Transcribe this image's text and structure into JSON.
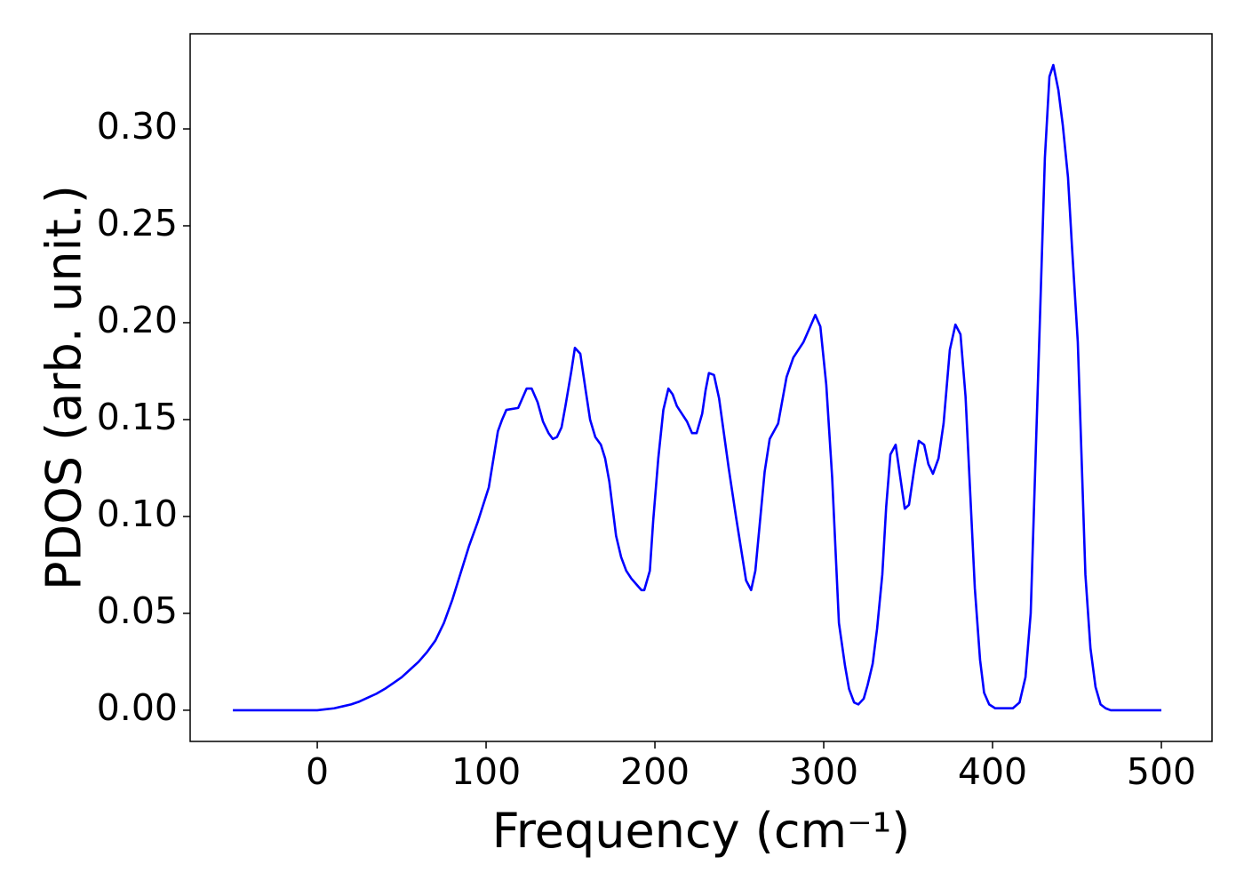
{
  "chart_data": {
    "type": "line",
    "x_label": "Frequency (cm⁻¹)",
    "y_label": "PDOS (arb. unit.)",
    "xlim": [
      -75.3,
      530
    ],
    "ylim": [
      -0.0161,
      0.3491
    ],
    "xticks": [
      0,
      100,
      200,
      300,
      400,
      500
    ],
    "yticks": [
      {
        "value": 0,
        "label": "0.00"
      },
      0.05,
      {
        "value": 0.1,
        "label": "0.10"
      },
      0.15,
      {
        "value": 0.2,
        "label": "0.20"
      },
      0.25,
      {
        "value": 0.3,
        "label": "0.30"
      }
    ],
    "grid": false,
    "series": [
      {
        "color": "#0000ff",
        "x": [
          -50,
          -25,
          0,
          5,
          10,
          15,
          20,
          25,
          30,
          35,
          40,
          45,
          50,
          55,
          60,
          65,
          70,
          75,
          80,
          85,
          90,
          95,
          101.6,
          107,
          109.5,
          112,
          119,
          124,
          127,
          130.5,
          133.7,
          137,
          139.5,
          142,
          144.7,
          147,
          150.5,
          152.6,
          155.8,
          159,
          161.6,
          164.7,
          168,
          170.5,
          173,
          177,
          180,
          183,
          186,
          189,
          192,
          193.7,
          197,
          199,
          202,
          205,
          208,
          210.5,
          213,
          216,
          219,
          222,
          224.7,
          228,
          230,
          232,
          235,
          238,
          243.7,
          248,
          254,
          257,
          259.5,
          265,
          268,
          273,
          278,
          282,
          288,
          292,
          295,
          298,
          301.5,
          305,
          309,
          312.6,
          315,
          318,
          320.5,
          323.7,
          326,
          329,
          331.6,
          334.7,
          337,
          339.5,
          342.6,
          348,
          350.5,
          353.7,
          356.3,
          359.5,
          362,
          364.7,
          368,
          371,
          374.7,
          378,
          381,
          384,
          389.5,
          392.6,
          395,
          398,
          401.6,
          412,
          416,
          419.5,
          422.6,
          428,
          431,
          433.7,
          436,
          439,
          441.6,
          444.7,
          447,
          450.5,
          455,
          458,
          461,
          464,
          467,
          470,
          500
        ],
        "values": [
          0,
          0,
          0,
          0.0005,
          0.001,
          0.002,
          0.003,
          0.0045,
          0.0065,
          0.0085,
          0.011,
          0.014,
          0.017,
          0.021,
          0.025,
          0.03,
          0.036,
          0.045,
          0.057,
          0.071,
          0.085,
          0.097,
          0.115,
          0.144,
          0.15,
          0.155,
          0.156,
          0.166,
          0.166,
          0.159,
          0.149,
          0.143,
          0.14,
          0.141,
          0.146,
          0.157,
          0.175,
          0.187,
          0.184,
          0.165,
          0.15,
          0.141,
          0.137,
          0.13,
          0.118,
          0.09,
          0.079,
          0.072,
          0.068,
          0.065,
          0.062,
          0.062,
          0.072,
          0.098,
          0.13,
          0.155,
          0.166,
          0.163,
          0.157,
          0.153,
          0.149,
          0.143,
          0.143,
          0.153,
          0.165,
          0.174,
          0.173,
          0.161,
          0.125,
          0.1,
          0.067,
          0.062,
          0.072,
          0.123,
          0.14,
          0.148,
          0.172,
          0.182,
          0.19,
          0.198,
          0.204,
          0.198,
          0.168,
          0.12,
          0.045,
          0.023,
          0.011,
          0.004,
          0.003,
          0.006,
          0.013,
          0.024,
          0.042,
          0.07,
          0.105,
          0.132,
          0.137,
          0.104,
          0.106,
          0.125,
          0.139,
          0.137,
          0.127,
          0.122,
          0.13,
          0.148,
          0.186,
          0.199,
          0.194,
          0.162,
          0.063,
          0.026,
          0.009,
          0.003,
          0.001,
          0.001,
          0.004,
          0.017,
          0.05,
          0.2,
          0.285,
          0.327,
          0.333,
          0.32,
          0.302,
          0.275,
          0.24,
          0.19,
          0.07,
          0.032,
          0.012,
          0.003,
          0.001,
          0,
          0
        ]
      }
    ]
  }
}
